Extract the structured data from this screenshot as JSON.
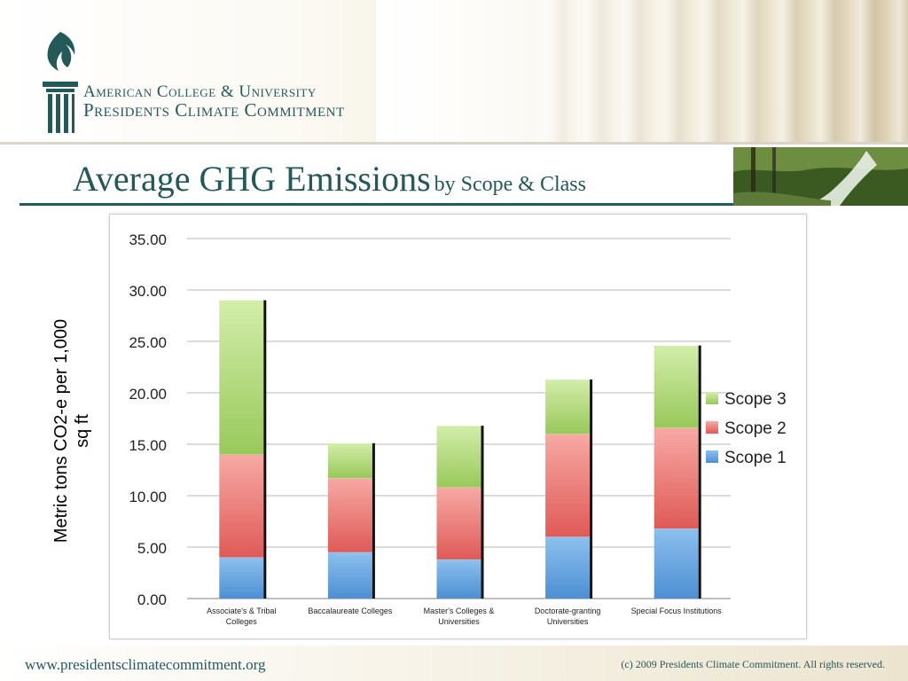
{
  "header": {
    "logo_line1": "American College & University",
    "logo_line2": "Presidents Climate Commitment"
  },
  "title": {
    "main": "Average GHG Emissions",
    "sub": "by Scope & Class"
  },
  "footer": {
    "url": "www.presidentsclimatecommitment.org",
    "copyright": "(c) 2009 Presidents Climate Commitment.   All rights reserved."
  },
  "colors": {
    "brand": "#24595a",
    "scope1": "#5b9bd5",
    "scope2": "#e4615e",
    "scope3": "#9ccd5e"
  },
  "chart_data": {
    "type": "bar",
    "stacked": true,
    "title": "",
    "ylabel": "Metric tons CO2-e per 1,000 sq ft",
    "ylim": [
      0,
      35
    ],
    "yticks": [
      "0.00",
      "5.00",
      "10.00",
      "15.00",
      "20.00",
      "25.00",
      "30.00",
      "35.00"
    ],
    "grid": true,
    "legend_position": "right",
    "categories": [
      [
        "Associate's & Tribal",
        "Colleges"
      ],
      [
        "Baccalaureate Colleges"
      ],
      [
        "Master's Colleges &",
        "Universities"
      ],
      [
        "Doctorate-granting",
        "Universities"
      ],
      [
        "Special Focus Institutions"
      ]
    ],
    "series": [
      {
        "name": "Scope 1",
        "values": [
          4.0,
          4.5,
          3.8,
          6.0,
          6.8
        ]
      },
      {
        "name": "Scope 2",
        "values": [
          10.0,
          7.2,
          7.0,
          10.0,
          9.8
        ]
      },
      {
        "name": "Scope 3",
        "values": [
          15.0,
          3.4,
          6.0,
          5.3,
          8.0
        ]
      }
    ],
    "legend_order": [
      "Scope 3",
      "Scope 2",
      "Scope 1"
    ]
  }
}
